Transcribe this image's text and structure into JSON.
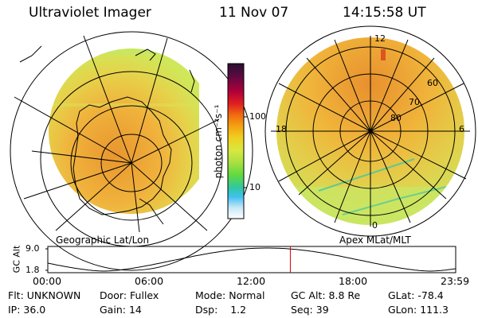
{
  "header": {
    "instrument": "Ultraviolet Imager",
    "date": "11 Nov 07",
    "time": "14:15:58 UT"
  },
  "colors": {
    "frame": "#000000",
    "disk_base": "#d2e85a",
    "disk_mid": "#f0c84a",
    "disk_hot": "#e88a38",
    "time_marker": "#cc0000"
  },
  "left_panel": {
    "label": "Geographic Lat/Lon"
  },
  "right_panel": {
    "label": "Apex MLat/MLT",
    "lat_labels": [
      "60",
      "70",
      "80"
    ],
    "mlt_labels": {
      "top": "12",
      "left": "18",
      "right": "6",
      "bottom": "0"
    }
  },
  "colorbar": {
    "unit_label": "photon cm⁻²s⁻¹",
    "ticks": [
      "100",
      "10"
    ],
    "colors_top_to_bottom": [
      "#2a1030",
      "#5a0a40",
      "#b0003a",
      "#e02020",
      "#f06a10",
      "#f4a010",
      "#f0d020",
      "#d8e840",
      "#a8e040",
      "#60d840",
      "#30c8a0",
      "#40c0f0",
      "#c8e8f8",
      "#ffffff"
    ]
  },
  "altitude_plot": {
    "ylabel": "GC Alt",
    "ymax_label": "9.0",
    "ymin_label": "1.8",
    "x_labels": [
      "00:00",
      "06:00",
      "12:00",
      "18:00",
      "23:59"
    ],
    "marker_hour": 14.27
  },
  "info": {
    "row1": [
      {
        "key": "Flt:",
        "val": "UNKNOWN"
      },
      {
        "key": "Door:",
        "val": "Fullex"
      },
      {
        "key": "Mode:",
        "val": "Normal"
      },
      {
        "key": "GC Alt:",
        "val": "8.8 Re"
      },
      {
        "key": "GLat:",
        "val": "-78.4"
      }
    ],
    "row2": [
      {
        "key": "IP:",
        "val": "36.0"
      },
      {
        "key": "Gain:",
        "val": "14"
      },
      {
        "key": "Dsp:",
        "val": "1.2"
      },
      {
        "key": "Seq:",
        "val": "39"
      },
      {
        "key": "GLon:",
        "val": "111.3"
      }
    ]
  }
}
